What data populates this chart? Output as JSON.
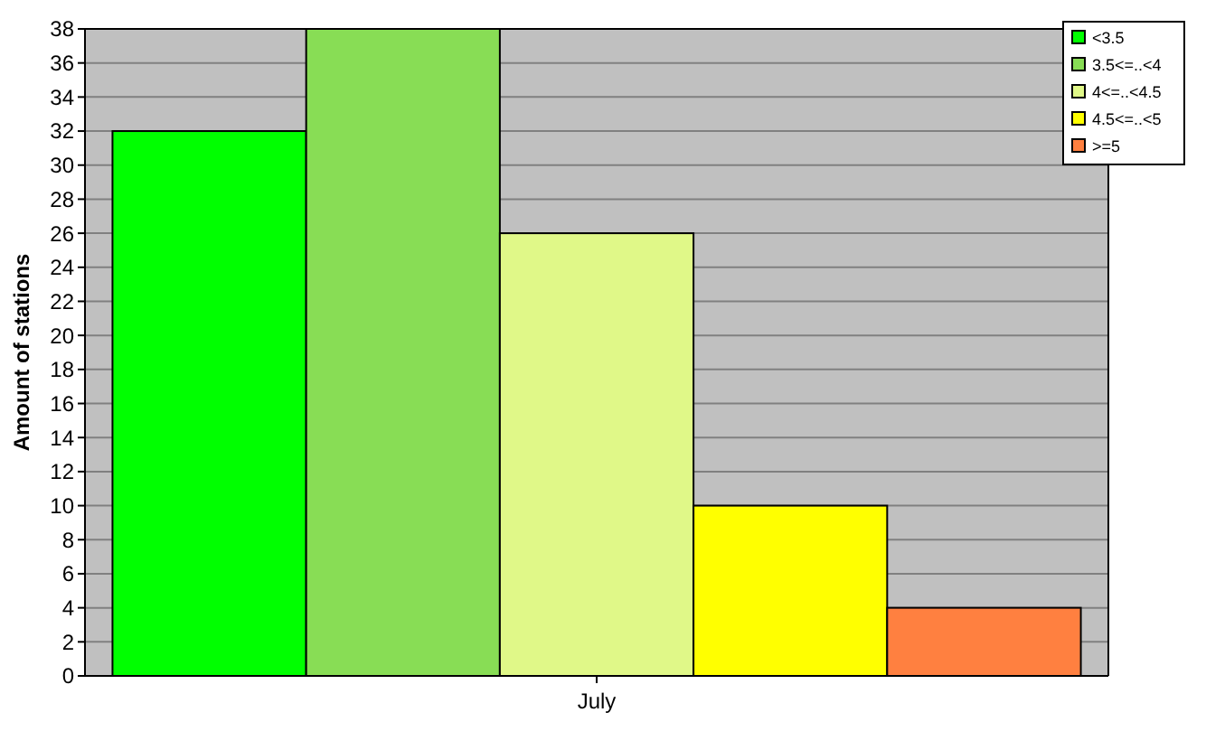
{
  "chart_data": {
    "type": "bar",
    "ylabel": "Amount of stations",
    "categories": [
      "July"
    ],
    "series": [
      {
        "name": "<3.5",
        "color": "#00ff00",
        "values": [
          32
        ]
      },
      {
        "name": "3.5<=..<4",
        "color": "#88dd55",
        "values": [
          38
        ]
      },
      {
        "name": "4<=..<4.5",
        "color": "#e0f888",
        "values": [
          26
        ]
      },
      {
        "name": "4.5<=..<5",
        "color": "#ffff00",
        "values": [
          10
        ]
      },
      {
        "name": ">=5",
        "color": "#ff8040",
        "values": [
          4
        ]
      }
    ],
    "ylim": [
      0,
      38
    ],
    "yticks": [
      0,
      2,
      4,
      6,
      8,
      10,
      12,
      14,
      16,
      18,
      20,
      22,
      24,
      26,
      28,
      30,
      32,
      34,
      36,
      38
    ],
    "grid": "y",
    "legend": "top right"
  }
}
